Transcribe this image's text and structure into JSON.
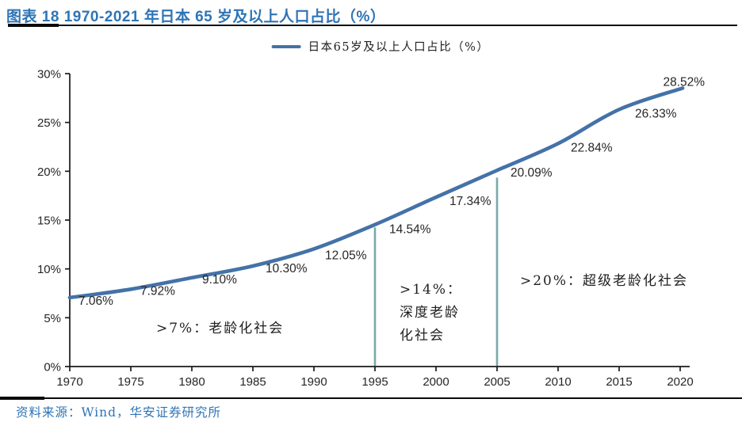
{
  "header": {
    "title": "图表 18 1970-2021 年日本 65 岁及以上人口占比（%）"
  },
  "legend": {
    "label": "日本65岁及以上人口占比（%）"
  },
  "footer": {
    "source": "资料来源：Wind，华安证券研究所"
  },
  "chart_data": {
    "type": "line",
    "title": "图表 18 1970-2021 年日本 65 岁及以上人口占比（%）",
    "legend": [
      "日本65岁及以上人口占比（%）"
    ],
    "x": [
      1970,
      1975,
      1980,
      1985,
      1990,
      1995,
      2000,
      2005,
      2010,
      2015,
      2021
    ],
    "series": [
      {
        "name": "日本65岁及以上人口占比（%）",
        "values": [
          7.06,
          7.92,
          9.1,
          10.3,
          12.05,
          14.54,
          17.34,
          20.09,
          22.84,
          26.33,
          28.52
        ]
      }
    ],
    "data_labels": [
      "7.06%",
      "7.92%",
      "9.10%",
      "10.30%",
      "12.05%",
      "14.54%",
      "17.34%",
      "20.09%",
      "22.84%",
      "26.33%",
      "28.52%"
    ],
    "xticks": [
      1970,
      1975,
      1980,
      1985,
      1990,
      1995,
      2000,
      2005,
      2010,
      2015,
      2020
    ],
    "yticks": [
      "0%",
      "5%",
      "10%",
      "15%",
      "20%",
      "25%",
      "30%"
    ],
    "xlim": [
      1970,
      2020
    ],
    "ylim": [
      0,
      30
    ],
    "grid": false,
    "legend_position": "top-center",
    "smooth": true,
    "annotations": [
      {
        "text": ">7%：老龄化社会"
      },
      {
        "text": ">14%：深度老龄化社会",
        "lines": [
          ">14%：",
          "深度老龄",
          "化社会"
        ]
      },
      {
        "text": ">20%：超级老龄化社会"
      }
    ],
    "reference_lines": [
      {
        "x": 1995,
        "y_top": 14.25
      },
      {
        "x": 2005,
        "y_top": 19.35
      }
    ],
    "colors": {
      "line": "#4472A8",
      "reference": "#79A9AC",
      "axis": "#1A1A1A",
      "title": "#2E74B5",
      "label_text": "#262626"
    }
  }
}
